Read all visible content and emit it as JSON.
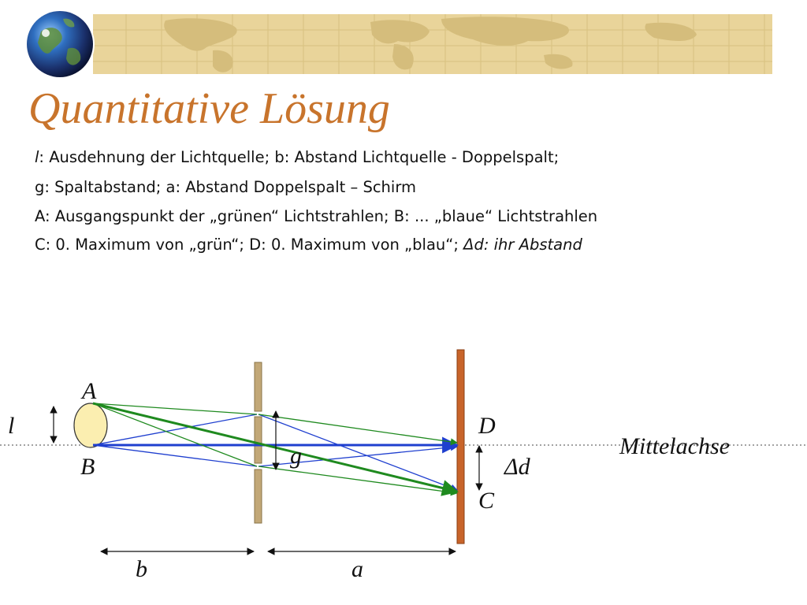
{
  "title": "Quantitative Lösung",
  "legend_lines": [
    {
      "prefix": "l",
      "rest": ": Ausdehnung der Lichtquelle; b: Abstand Lichtquelle - Doppelspalt;"
    },
    {
      "text": "g: Spaltabstand; a: Abstand Doppelspalt – Schirm"
    },
    {
      "text": "A: Ausgangspunkt der „grünen“ Lichtstrahlen; B: ... „blaue“ Lichtstrahlen"
    },
    {
      "text": "C: 0. Maximum von „grün“; D: 0. Maximum von „blau“;",
      "italic": "Δd: ihr Abstand"
    }
  ],
  "diagram": {
    "label_A": "A",
    "label_B": "B",
    "label_C": "C",
    "label_D": "D",
    "label_l": "l",
    "label_g": "g",
    "label_b": "b",
    "label_a": "a",
    "label_delta_d": "Δd",
    "label_axis": "Mittelachse"
  },
  "colors": {
    "title": "#c8742c",
    "screen": "#c8642a",
    "slit_plate": "#c2a878",
    "light_source": "#fbeeb0",
    "green_rays": "#1f8a1f",
    "blue_rays": "#1f3fcf",
    "banner_map": "#e9d49a"
  },
  "icons": {
    "globe": "globe-icon"
  }
}
